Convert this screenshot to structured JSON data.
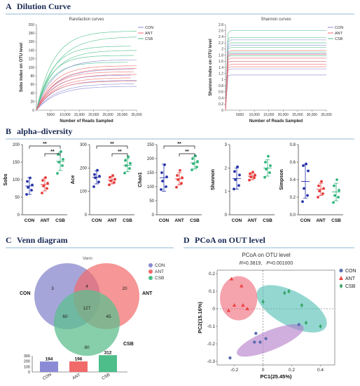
{
  "figure": {
    "panel_a": {
      "letter": "A",
      "title": "Dilution Curve"
    },
    "panel_b": {
      "letter": "B",
      "title": "alpha–diversity"
    },
    "panel_c": {
      "letter": "C",
      "title": "Venn diagram"
    },
    "panel_d": {
      "letter": "D",
      "title": "PCoA on OUT level"
    }
  },
  "groups": [
    {
      "name": "CON",
      "color": "#8a8ad6"
    },
    {
      "name": "ANT",
      "color": "#f06a6a"
    },
    {
      "name": "CSB",
      "color": "#4dbe8a"
    }
  ],
  "chart_data": [
    {
      "id": "rarefaction",
      "type": "line",
      "title": "Rarefaction curves",
      "xlabel": "Number of Reads Sampled",
      "ylabel": "Sobs index on OTU level",
      "xlim": [
        0,
        35000
      ],
      "ylim": [
        0,
        200
      ],
      "xticks": [
        "5000",
        "10,000",
        "15,000",
        "20,000",
        "25,000",
        "30,000",
        "35,000"
      ],
      "xtick_values": [
        5000,
        10000,
        15000,
        20000,
        25000,
        30000,
        35000
      ],
      "yticks": [
        "0",
        "10",
        "20",
        "30",
        "40",
        "50",
        "60",
        "70",
        "80",
        "90",
        "100",
        "110",
        "120",
        "130",
        "140",
        "150",
        "160",
        "170",
        "180",
        "190",
        "200"
      ],
      "legend": [
        "CON",
        "ANT",
        "CSB"
      ],
      "series": [
        {
          "group": "CSB",
          "asymptote": 185,
          "k": 6000,
          "end": 35000
        },
        {
          "group": "CSB",
          "asymptote": 172,
          "k": 7000,
          "end": 35000
        },
        {
          "group": "CSB",
          "asymptote": 150,
          "k": 5500,
          "end": 33000
        },
        {
          "group": "CSB",
          "asymptote": 140,
          "k": 6000,
          "end": 35000
        },
        {
          "group": "CSB",
          "asymptote": 128,
          "k": 5000,
          "end": 34000
        },
        {
          "group": "CSB",
          "asymptote": 112,
          "k": 5000,
          "end": 32000
        },
        {
          "group": "CON",
          "asymptote": 118,
          "k": 6000,
          "end": 35000
        },
        {
          "group": "CON",
          "asymptote": 96,
          "k": 6500,
          "end": 34000
        },
        {
          "group": "CON",
          "asymptote": 82,
          "k": 6000,
          "end": 33000
        },
        {
          "group": "CON",
          "asymptote": 70,
          "k": 6500,
          "end": 35000
        },
        {
          "group": "CON",
          "asymptote": 62,
          "k": 7000,
          "end": 34000
        },
        {
          "group": "CON",
          "asymptote": 56,
          "k": 7000,
          "end": 35000
        },
        {
          "group": "ANT",
          "asymptote": 104,
          "k": 6000,
          "end": 35000
        },
        {
          "group": "ANT",
          "asymptote": 98,
          "k": 6500,
          "end": 35000
        },
        {
          "group": "ANT",
          "asymptote": 90,
          "k": 6000,
          "end": 34000
        },
        {
          "group": "ANT",
          "asymptote": 84,
          "k": 6500,
          "end": 35000
        },
        {
          "group": "ANT",
          "asymptote": 76,
          "k": 6500,
          "end": 33000
        },
        {
          "group": "ANT",
          "asymptote": 68,
          "k": 6000,
          "end": 35000
        }
      ]
    },
    {
      "id": "shannon_curves",
      "type": "line",
      "title": "Shannon curves",
      "xlabel": "Number of Reads Sampled",
      "ylabel": "Shannon index on OTU level",
      "xlim": [
        0,
        35000
      ],
      "ylim": [
        0,
        2.8
      ],
      "xticks": [
        "5000",
        "10,000",
        "15,000",
        "20,000",
        "25,000",
        "30,000",
        "35,000"
      ],
      "xtick_values": [
        5000,
        10000,
        15000,
        20000,
        25000,
        30000,
        35000
      ],
      "yticks": [
        "0",
        "0.2",
        "0.4",
        "0.6",
        "0.8",
        "1",
        "1.2",
        "1.4",
        "1.6",
        "1.8",
        "2",
        "2.2",
        "2.4",
        "2.6",
        "2.8"
      ],
      "legend": [
        "CON",
        "ANT",
        "CSB"
      ],
      "series": [
        {
          "group": "CSB",
          "level": 2.6
        },
        {
          "group": "CSB",
          "level": 2.38
        },
        {
          "group": "CSB",
          "level": 2.2
        },
        {
          "group": "CSB",
          "level": 2.05
        },
        {
          "group": "CSB",
          "level": 1.9
        },
        {
          "group": "CSB",
          "level": 1.78
        },
        {
          "group": "CON",
          "level": 2.3
        },
        {
          "group": "CON",
          "level": 2.12
        },
        {
          "group": "CON",
          "level": 1.85
        },
        {
          "group": "CON",
          "level": 1.6
        },
        {
          "group": "CON",
          "level": 1.35
        },
        {
          "group": "CON",
          "level": 1.15
        },
        {
          "group": "ANT",
          "level": 1.95
        },
        {
          "group": "ANT",
          "level": 1.82
        },
        {
          "group": "ANT",
          "level": 1.7
        },
        {
          "group": "ANT",
          "level": 1.6
        },
        {
          "group": "ANT",
          "level": 1.5
        },
        {
          "group": "ANT",
          "level": 1.42
        }
      ]
    },
    {
      "id": "sobs",
      "type": "scatter",
      "ylabel": "Sobs",
      "ylim": [
        0,
        200
      ],
      "yticks": [
        "0",
        "50",
        "100",
        "150",
        "200"
      ],
      "ytick_values": [
        0,
        50,
        100,
        150,
        200
      ],
      "categories": [
        "CON",
        "ANT",
        "CSB"
      ],
      "groups": [
        {
          "name": "CON",
          "mean": 82,
          "sd": 24,
          "points": [
            58,
            70,
            78,
            85,
            95,
            105
          ]
        },
        {
          "name": "ANT",
          "mean": 86,
          "sd": 18,
          "points": [
            62,
            75,
            82,
            90,
            98,
            106
          ]
        },
        {
          "name": "CSB",
          "mean": 152,
          "sd": 26,
          "points": [
            118,
            140,
            150,
            158,
            172,
            180
          ]
        }
      ],
      "significance": [
        {
          "from": 0,
          "to": 2,
          "label": "**"
        },
        {
          "from": 1,
          "to": 2,
          "label": "**"
        }
      ]
    },
    {
      "id": "ace",
      "type": "scatter",
      "ylabel": "Ace",
      "ylim": [
        0,
        300
      ],
      "yticks": [
        "0",
        "100",
        "200",
        "300"
      ],
      "ytick_values": [
        0,
        100,
        200,
        300
      ],
      "categories": [
        "CON",
        "ANT",
        "CSB"
      ],
      "groups": [
        {
          "name": "CON",
          "mean": 160,
          "sd": 28,
          "points": [
            120,
            140,
            158,
            165,
            172,
            190
          ]
        },
        {
          "name": "ANT",
          "mean": 148,
          "sd": 16,
          "points": [
            128,
            138,
            145,
            152,
            160,
            168
          ]
        },
        {
          "name": "CSB",
          "mean": 212,
          "sd": 28,
          "points": [
            178,
            198,
            210,
            220,
            232,
            248
          ]
        }
      ],
      "significance": [
        {
          "from": 0,
          "to": 2,
          "label": "**"
        },
        {
          "from": 1,
          "to": 2,
          "label": "**"
        }
      ]
    },
    {
      "id": "chao1",
      "type": "scatter",
      "ylabel": "Chao1",
      "ylim": [
        0,
        250
      ],
      "yticks": [
        "0",
        "50",
        "100",
        "150",
        "200",
        "250"
      ],
      "ytick_values": [
        0,
        50,
        100,
        150,
        200,
        250
      ],
      "categories": [
        "CON",
        "ANT",
        "CSB"
      ],
      "groups": [
        {
          "name": "CON",
          "mean": 132,
          "sd": 48,
          "points": [
            90,
            100,
            120,
            135,
            150,
            178
          ]
        },
        {
          "name": "ANT",
          "mean": 128,
          "sd": 22,
          "points": [
            98,
            112,
            125,
            132,
            140,
            158
          ]
        },
        {
          "name": "CSB",
          "mean": 185,
          "sd": 22,
          "points": [
            160,
            170,
            182,
            190,
            200,
            210
          ]
        }
      ],
      "significance": [
        {
          "from": 0,
          "to": 2,
          "label": "**"
        },
        {
          "from": 1,
          "to": 2,
          "label": "**"
        }
      ]
    },
    {
      "id": "shannon",
      "type": "scatter",
      "ylabel": "Shannon",
      "ylim": [
        0,
        3
      ],
      "yticks": [
        "0",
        "1",
        "2",
        "3"
      ],
      "ytick_values": [
        0,
        1,
        2,
        3
      ],
      "categories": [
        "CON",
        "ANT",
        "CSB"
      ],
      "groups": [
        {
          "name": "CON",
          "mean": 1.55,
          "sd": 0.45,
          "points": [
            1.1,
            1.25,
            1.5,
            1.7,
            1.85,
            2.05
          ]
        },
        {
          "name": "ANT",
          "mean": 1.65,
          "sd": 0.15,
          "points": [
            1.48,
            1.58,
            1.62,
            1.7,
            1.75,
            1.82
          ]
        },
        {
          "name": "CSB",
          "mean": 2.0,
          "sd": 0.35,
          "points": [
            1.6,
            1.8,
            1.95,
            2.1,
            2.25,
            2.5
          ]
        }
      ],
      "significance": []
    },
    {
      "id": "simpson",
      "type": "scatter",
      "ylabel": "Simpson",
      "ylim": [
        0,
        0.8
      ],
      "yticks": [
        "0.0",
        "0.2",
        "0.4",
        "0.6",
        "0.8"
      ],
      "ytick_values": [
        0,
        0.2,
        0.4,
        0.6,
        0.8
      ],
      "categories": [
        "CON",
        "ANT",
        "CSB"
      ],
      "groups": [
        {
          "name": "CON",
          "mean": 0.38,
          "sd": 0.19,
          "points": [
            0.15,
            0.22,
            0.3,
            0.5,
            0.56,
            0.58
          ]
        },
        {
          "name": "ANT",
          "mean": 0.29,
          "sd": 0.07,
          "points": [
            0.2,
            0.24,
            0.27,
            0.3,
            0.33,
            0.38
          ]
        },
        {
          "name": "CSB",
          "mean": 0.26,
          "sd": 0.1,
          "points": [
            0.14,
            0.2,
            0.22,
            0.28,
            0.33,
            0.4
          ]
        }
      ],
      "significance": []
    },
    {
      "id": "venn",
      "type": "venn",
      "title": "Venn",
      "sets": [
        "CON",
        "ANT",
        "CSB"
      ],
      "regions": {
        "CON_only": 3,
        "ANT_only": 20,
        "CSB_only": 80,
        "CON_ANT": 4,
        "CON_CSB": 60,
        "ANT_CSB": 45,
        "all": 127
      },
      "totals": {
        "categories": [
          "CON",
          "ANT",
          "CSB"
        ],
        "values": [
          194,
          196,
          312
        ],
        "yticks": [
          "0",
          "100",
          "200",
          "300"
        ],
        "ytick_values": [
          0,
          100,
          200,
          300
        ],
        "ylim": [
          0,
          300
        ]
      }
    },
    {
      "id": "pcoa",
      "type": "scatter",
      "title": "PCoA on OTU level",
      "stat": {
        "R_label": "R",
        "R_value": "=0.3819,",
        "P_label": "P",
        "P_value": "=0.001000"
      },
      "xlabel": "PC1(25.45%)",
      "ylabel": "PC2(15.16%)",
      "xlim": [
        -0.32,
        0.5
      ],
      "ylim": [
        -0.32,
        0.22
      ],
      "xticks": [
        "-0.2",
        "0",
        "0.2",
        "0.4"
      ],
      "xtick_values": [
        -0.2,
        0,
        0.2,
        0.4
      ],
      "yticks": [
        "-0.3",
        "-0.2",
        "-0.1",
        "0",
        "0.1",
        "0.2"
      ],
      "ytick_values": [
        -0.3,
        -0.2,
        -0.1,
        0,
        0.1,
        0.2
      ],
      "groups": [
        {
          "name": "CON",
          "marker": "circle",
          "color": "#5a6fb0",
          "ellipse_color": "#b07ac8",
          "points": [
            [
              -0.23,
              -0.28
            ],
            [
              -0.05,
              -0.14
            ],
            [
              0.02,
              -0.17
            ],
            [
              -0.02,
              -0.19
            ],
            [
              -0.06,
              -0.19
            ],
            [
              0.25,
              -0.09
            ]
          ]
        },
        {
          "name": "ANT",
          "marker": "triangle",
          "color": "#ee4444",
          "ellipse_color": "#ee6677",
          "points": [
            [
              -0.22,
              0.17
            ],
            [
              -0.15,
              0.13
            ],
            [
              -0.14,
              0.02
            ],
            [
              -0.2,
              0.02
            ],
            [
              -0.11,
              0.0
            ],
            [
              -0.24,
              -0.01
            ]
          ]
        },
        {
          "name": "CSB",
          "marker": "diamond",
          "color": "#3aa66a",
          "ellipse_color": "#4dbdb3",
          "points": [
            [
              0.0,
              0.04
            ],
            [
              0.15,
              0.09
            ],
            [
              0.18,
              0.1
            ],
            [
              0.27,
              0.02
            ],
            [
              0.3,
              -0.08
            ],
            [
              0.4,
              -0.1
            ]
          ]
        }
      ]
    }
  ]
}
